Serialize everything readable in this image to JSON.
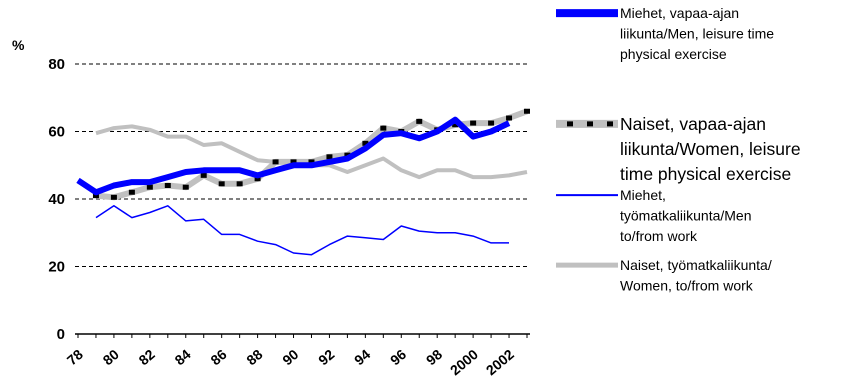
{
  "chart_data": {
    "type": "line",
    "title": "",
    "ylabel": "%",
    "xlabel": "",
    "ylim": [
      0,
      80
    ],
    "y_ticks": [
      "0",
      "20",
      "40",
      "60",
      "80"
    ],
    "x_tick_labels": [
      "78",
      "80",
      "82",
      "84",
      "86",
      "88",
      "90",
      "92",
      "94",
      "96",
      "98",
      "2000",
      "2002"
    ],
    "x": [
      1978,
      1979,
      1980,
      1981,
      1982,
      1983,
      1984,
      1985,
      1986,
      1987,
      1988,
      1989,
      1990,
      1991,
      1992,
      1993,
      1994,
      1995,
      1996,
      1997,
      1998,
      1999,
      2000,
      2001,
      2002,
      2003
    ],
    "grid": "horizontal dashed",
    "legend": "right",
    "series": [
      {
        "name": "Miehet, vapaa-ajan liikunta/Men, leisure time physical exercise",
        "color": "#0000ff",
        "values": [
          45.5,
          42,
          44,
          45,
          45,
          46.5,
          48,
          48.5,
          48.5,
          48.5,
          47,
          48.5,
          50,
          50,
          51,
          52,
          55,
          59,
          59.5,
          58,
          60,
          63.5,
          58.5,
          60,
          62.5,
          null
        ]
      },
      {
        "name": "Naiset, vapaa-ajan liikunta/Women, leisure time physical exercise",
        "color": "#c0c0c0",
        "marker": "#000000",
        "values": [
          null,
          41,
          40.5,
          42,
          43.5,
          44,
          43.5,
          47,
          44.5,
          44.5,
          46,
          51,
          51,
          51,
          52.5,
          53,
          56.5,
          61,
          60,
          63,
          60.5,
          62,
          62.5,
          62.5,
          64,
          66
        ]
      },
      {
        "name": "Miehet, työmatkaliikunta/Men to/from work",
        "color": "#0000ff",
        "values": [
          null,
          34.5,
          38,
          34.5,
          36,
          38,
          33.5,
          34,
          29.5,
          29.5,
          27.5,
          26.5,
          24,
          23.5,
          26.5,
          29,
          28.5,
          28,
          32,
          30.5,
          30,
          30,
          29,
          27,
          27,
          null
        ]
      },
      {
        "name": "Naiset, työmatkaliikunta/ Women, to/from work",
        "color": "#c0c0c0",
        "values": [
          null,
          59.5,
          61,
          61.5,
          60.5,
          58.5,
          58.5,
          56,
          56.5,
          54,
          51.5,
          51,
          50.5,
          50,
          50,
          48,
          50,
          52,
          48.5,
          46.5,
          48.5,
          48.5,
          46.5,
          46.5,
          47,
          48
        ]
      }
    ]
  }
}
